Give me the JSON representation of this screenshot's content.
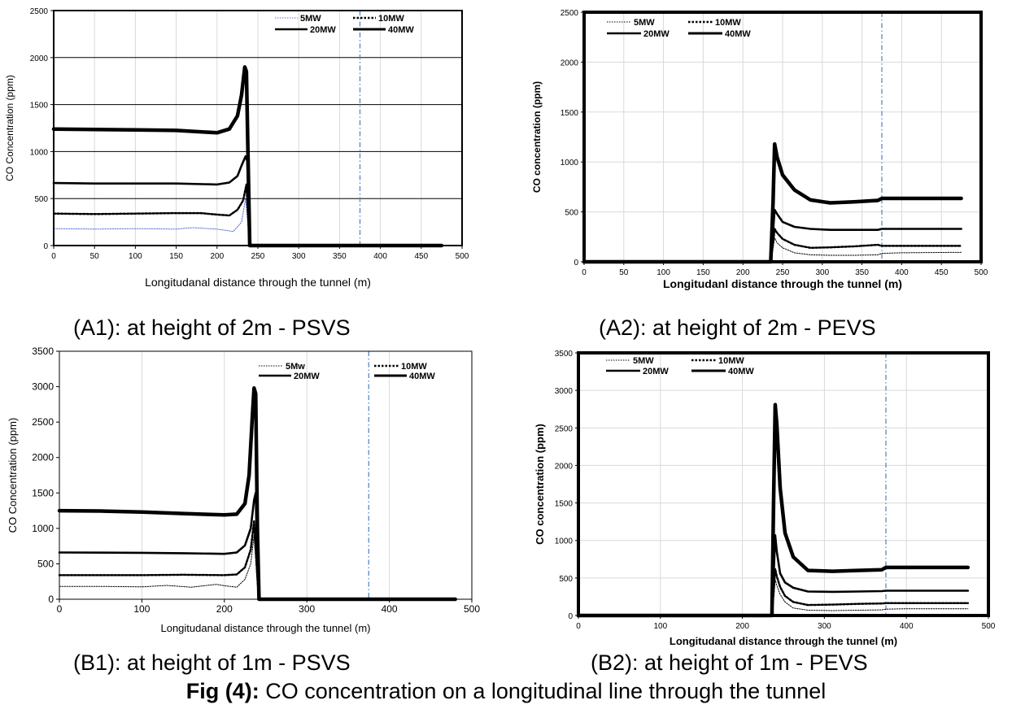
{
  "figure": {
    "caption_bold": "Fig (4):",
    "caption_rest": " CO concentration on a longitudinal line through the tunnel"
  },
  "panel_captions": [
    "(A1): at height of 2m - PSVS",
    "(A2): at height of 2m - PEVS",
    "(B1): at height of 1m - PSVS",
    "(B2): at height of 1m - PEVS"
  ],
  "colors": {
    "axis": "#000000",
    "gridline_light": "#d9d9d9",
    "gridline_dark": "#000000",
    "series": "#000000",
    "series_5mw_a1": "#5b6fd6",
    "reference_line": "#4a7ec2"
  },
  "chart_data": [
    {
      "id": "A1",
      "type": "line",
      "title": "",
      "xlabel": "Longitudanal distance through the tunnel (m)",
      "ylabel": "CO Concentration (ppm)",
      "xlim": [
        0,
        500
      ],
      "ylim": [
        0,
        2500
      ],
      "x_ticks": [
        0,
        50,
        100,
        150,
        200,
        250,
        300,
        350,
        400,
        450,
        500
      ],
      "y_ticks": [
        0,
        500,
        1000,
        1500,
        2000,
        2500
      ],
      "grid": "vertical light, horizontal dark",
      "legend": "top-right",
      "reference_line_x": 375,
      "series": [
        {
          "name": "5MW",
          "style": "dotted",
          "x": [
            0,
            50,
            100,
            150,
            170,
            200,
            220,
            230,
            235,
            238,
            240,
            250,
            300,
            400,
            475
          ],
          "y": [
            180,
            175,
            180,
            175,
            190,
            175,
            150,
            250,
            500,
            200,
            0,
            0,
            0,
            0,
            0
          ]
        },
        {
          "name": "10MW",
          "style": "dense-dotted",
          "x": [
            0,
            50,
            100,
            150,
            180,
            200,
            215,
            225,
            232,
            236,
            238,
            240,
            250,
            300,
            400,
            475
          ],
          "y": [
            340,
            335,
            340,
            345,
            345,
            330,
            320,
            380,
            480,
            650,
            300,
            0,
            0,
            0,
            0,
            0
          ]
        },
        {
          "name": "20MW",
          "style": "thick",
          "x": [
            0,
            50,
            100,
            150,
            200,
            215,
            225,
            230,
            235,
            237,
            239,
            241,
            250,
            300,
            400,
            475
          ],
          "y": [
            665,
            660,
            660,
            660,
            650,
            670,
            740,
            850,
            950,
            900,
            300,
            0,
            0,
            0,
            0,
            0
          ]
        },
        {
          "name": "40MW",
          "style": "very-thick",
          "x": [
            0,
            50,
            100,
            150,
            200,
            215,
            225,
            230,
            234,
            236,
            238,
            240,
            250,
            300,
            400,
            475
          ],
          "y": [
            1240,
            1235,
            1230,
            1225,
            1200,
            1240,
            1380,
            1600,
            1900,
            1850,
            900,
            0,
            0,
            0,
            0,
            0
          ]
        }
      ]
    },
    {
      "id": "A2",
      "type": "line",
      "title": "",
      "xlabel": "Longitudanl distance through the tunnel  (m)",
      "ylabel": "CO concentration  (ppm)",
      "xlim": [
        0,
        500
      ],
      "ylim": [
        0,
        2500
      ],
      "x_ticks": [
        0,
        50,
        100,
        150,
        200,
        250,
        300,
        350,
        400,
        450,
        500
      ],
      "y_ticks": [
        0,
        500,
        1000,
        1500,
        2000,
        2500
      ],
      "grid": "vertical light, horizontal light",
      "legend": "top-left",
      "reference_line_x": 375,
      "series": [
        {
          "name": "5MW",
          "style": "dotted",
          "x": [
            0,
            235,
            238,
            240,
            243,
            250,
            265,
            285,
            310,
            340,
            370,
            375,
            400,
            475
          ],
          "y": [
            0,
            0,
            150,
            240,
            190,
            140,
            90,
            70,
            65,
            65,
            70,
            85,
            90,
            95
          ]
        },
        {
          "name": "10MW",
          "style": "dense-dotted",
          "x": [
            0,
            235,
            238,
            240,
            243,
            250,
            265,
            285,
            310,
            340,
            370,
            375,
            400,
            475
          ],
          "y": [
            0,
            0,
            180,
            330,
            290,
            230,
            170,
            140,
            145,
            155,
            170,
            160,
            160,
            160
          ]
        },
        {
          "name": "20MW",
          "style": "thick",
          "x": [
            0,
            235,
            238,
            240,
            243,
            250,
            265,
            285,
            310,
            340,
            370,
            375,
            400,
            475
          ],
          "y": [
            0,
            0,
            300,
            520,
            480,
            400,
            350,
            330,
            320,
            320,
            320,
            330,
            330,
            330
          ]
        },
        {
          "name": "40MW",
          "style": "very-thick",
          "x": [
            0,
            235,
            238,
            240,
            243,
            250,
            265,
            285,
            310,
            340,
            370,
            375,
            400,
            475
          ],
          "y": [
            0,
            0,
            600,
            1180,
            1050,
            870,
            720,
            620,
            590,
            600,
            615,
            635,
            635,
            635
          ]
        }
      ]
    },
    {
      "id": "B1",
      "type": "line",
      "title": "",
      "xlabel": "Longitudanal distance through the tunnel (m)",
      "ylabel": "CO Concentration (ppm)",
      "xlim": [
        0,
        500
      ],
      "ylim": [
        0,
        3500
      ],
      "x_ticks": [
        0,
        100,
        200,
        300,
        400,
        500
      ],
      "y_ticks": [
        0,
        500,
        1000,
        1500,
        2000,
        2500,
        3000,
        3500
      ],
      "grid": "vertical light",
      "legend": "top-right",
      "reference_line_x": 375,
      "series": [
        {
          "name": "5Mw",
          "style": "dotted",
          "x": [
            0,
            60,
            100,
            130,
            160,
            190,
            200,
            215,
            225,
            232,
            236,
            240,
            242,
            250,
            300,
            400,
            480
          ],
          "y": [
            180,
            180,
            175,
            195,
            170,
            210,
            190,
            170,
            280,
            500,
            900,
            200,
            0,
            0,
            0,
            0,
            0
          ]
        },
        {
          "name": "10MW",
          "style": "dense-dotted",
          "x": [
            0,
            100,
            150,
            200,
            215,
            225,
            232,
            236,
            240,
            242,
            250,
            300,
            400,
            480
          ],
          "y": [
            340,
            340,
            345,
            340,
            350,
            450,
            700,
            1100,
            300,
            0,
            0,
            0,
            0,
            0
          ]
        },
        {
          "name": "20MW",
          "style": "thick",
          "x": [
            0,
            100,
            150,
            200,
            215,
            225,
            232,
            236,
            238,
            240,
            242,
            250,
            300,
            400,
            480
          ],
          "y": [
            660,
            655,
            650,
            640,
            660,
            760,
            1000,
            1400,
            1500,
            400,
            0,
            0,
            0,
            0,
            0
          ]
        },
        {
          "name": "40MW",
          "style": "very-thick",
          "x": [
            0,
            50,
            100,
            150,
            200,
            215,
            225,
            230,
            234,
            236,
            238,
            240,
            242,
            250,
            300,
            400,
            480
          ],
          "y": [
            1250,
            1245,
            1230,
            1210,
            1190,
            1200,
            1350,
            1750,
            2600,
            2980,
            2900,
            1000,
            0,
            0,
            0,
            0,
            0
          ]
        }
      ]
    },
    {
      "id": "B2",
      "type": "line",
      "title": "",
      "xlabel": "Longitudanal distance through the tunnel (m)",
      "ylabel": "CO concentration  (ppm)",
      "xlim": [
        0,
        500
      ],
      "ylim": [
        0,
        3500
      ],
      "x_ticks": [
        0,
        100,
        200,
        300,
        400,
        500
      ],
      "y_ticks": [
        0,
        500,
        1000,
        1500,
        2000,
        2500,
        3000,
        3500
      ],
      "grid": "vertical light, horizontal light",
      "legend": "top-left",
      "reference_line_x": 375,
      "series": [
        {
          "name": "5MW",
          "style": "dotted",
          "x": [
            0,
            236,
            238,
            240,
            242,
            246,
            252,
            262,
            280,
            310,
            340,
            370,
            375,
            400,
            475
          ],
          "y": [
            0,
            0,
            200,
            480,
            400,
            280,
            180,
            100,
            70,
            65,
            70,
            75,
            85,
            90,
            90
          ]
        },
        {
          "name": "10MW",
          "style": "dense-dotted",
          "x": [
            0,
            236,
            238,
            240,
            242,
            246,
            252,
            262,
            280,
            310,
            340,
            370,
            375,
            400,
            475
          ],
          "y": [
            0,
            0,
            300,
            620,
            520,
            380,
            260,
            180,
            140,
            145,
            155,
            160,
            165,
            165,
            165
          ]
        },
        {
          "name": "20MW",
          "style": "thick",
          "x": [
            0,
            236,
            238,
            240,
            242,
            246,
            252,
            262,
            280,
            310,
            340,
            370,
            375,
            400,
            475
          ],
          "y": [
            0,
            0,
            500,
            1070,
            850,
            560,
            440,
            370,
            320,
            315,
            320,
            325,
            330,
            330,
            330
          ]
        },
        {
          "name": "40MW",
          "style": "very-thick",
          "x": [
            0,
            236,
            238,
            240,
            242,
            246,
            252,
            262,
            280,
            310,
            340,
            370,
            375,
            400,
            475
          ],
          "y": [
            0,
            0,
            1500,
            2810,
            2550,
            1700,
            1100,
            780,
            600,
            590,
            600,
            610,
            640,
            640,
            640
          ]
        }
      ]
    }
  ]
}
